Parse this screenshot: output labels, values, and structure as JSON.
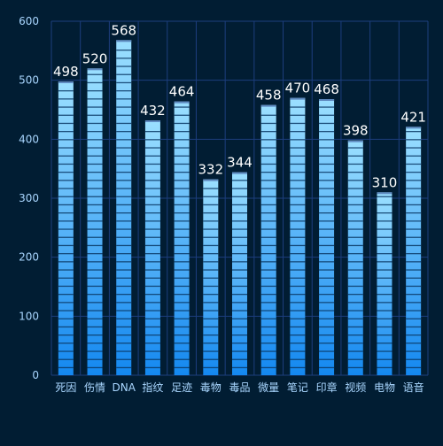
{
  "chart_data": {
    "type": "bar",
    "categories": [
      "死因",
      "伤情",
      "DNA",
      "指纹",
      "足迹",
      "毒物",
      "毒品",
      "微量",
      "笔记",
      "印章",
      "视频",
      "电物",
      "语音"
    ],
    "values": [
      498,
      520,
      568,
      432,
      464,
      332,
      344,
      458,
      470,
      468,
      398,
      310,
      421
    ],
    "y_ticks": [
      "0",
      "100",
      "200",
      "300",
      "400",
      "500",
      "600"
    ],
    "ylim": [
      0,
      600
    ],
    "grid": true,
    "data_labels": true
  },
  "colors": {
    "background": "#011d33",
    "grid": "#1d3e7e",
    "axis_text": "#a9d6ff",
    "bar_top": "#9bdfff",
    "bar_bottom": "#1488f0",
    "segment_gap": "#0b3a66",
    "label": "#ffffff"
  }
}
